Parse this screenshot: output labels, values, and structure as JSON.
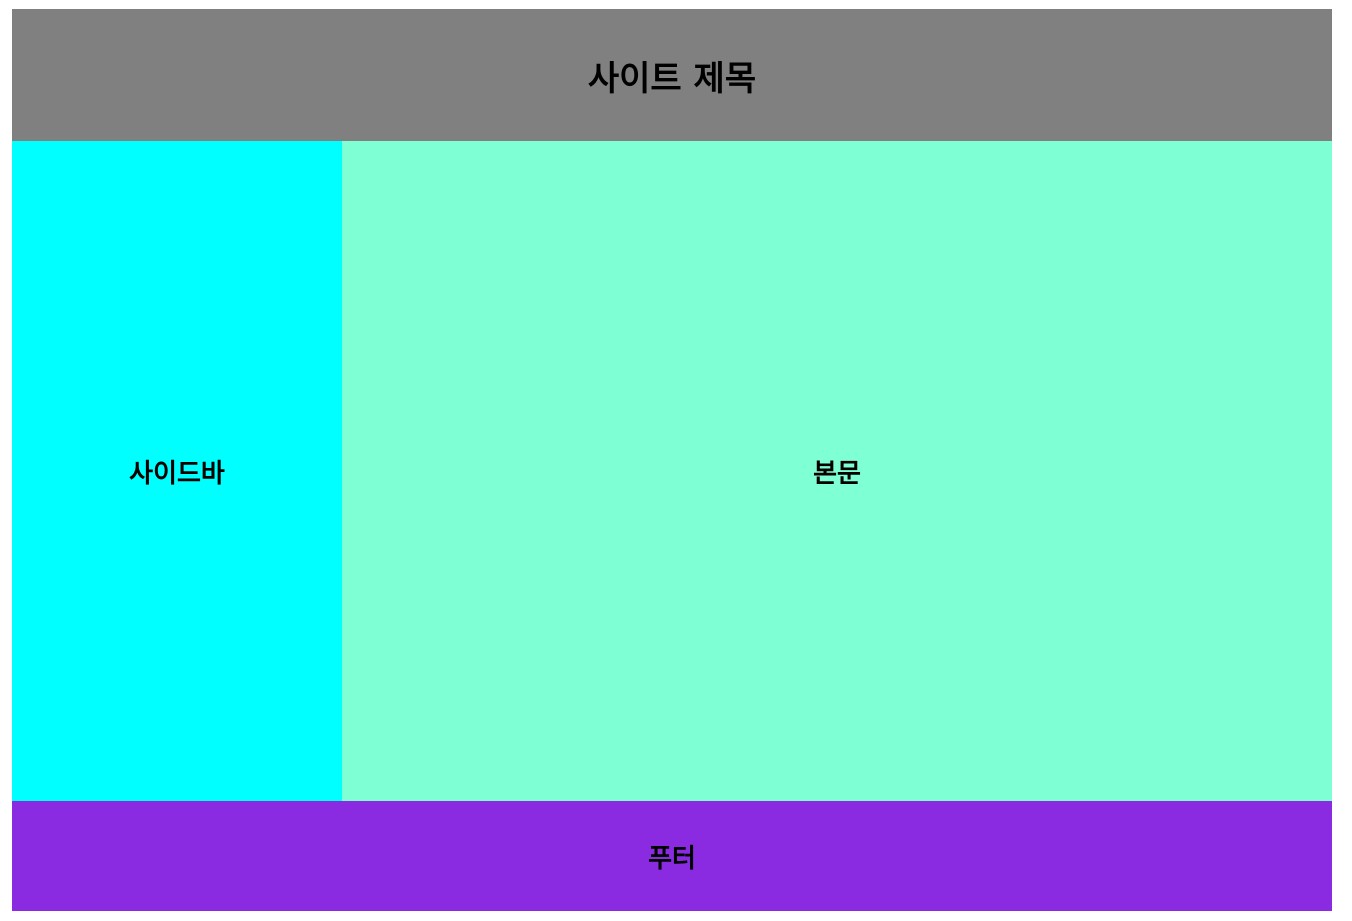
{
  "header": {
    "title": "사이트 제목",
    "background": "#808080"
  },
  "sidebar": {
    "label": "사이드바",
    "background": "#00FFFF"
  },
  "main": {
    "label": "본문",
    "background": "#7FFFD4"
  },
  "footer": {
    "label": "푸터",
    "background": "#8A2BE2"
  }
}
